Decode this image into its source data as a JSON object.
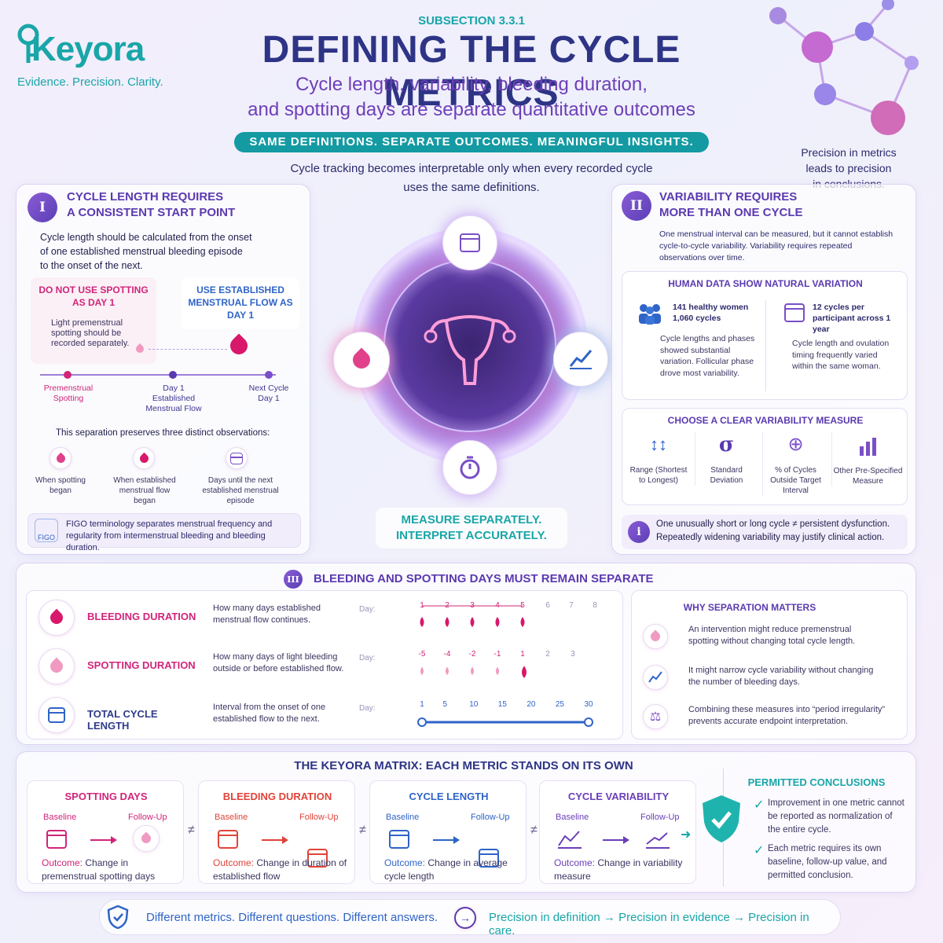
{
  "brand": {
    "name": "Keyora",
    "tagline": "Evidence. Precision. Clarity."
  },
  "header": {
    "subsection": "SUBSECTION 3.3.1",
    "title": "DEFINING THE CYCLE METRICS",
    "subtitle_line1": "Cycle length, variability, bleeding duration,",
    "subtitle_line2": "and spotting days are separate quantitative outcomes",
    "banner": "SAME DEFINITIONS. SEPARATE OUTCOMES. MEANINGFUL INSIGHTS.",
    "intro_line1": "Cycle tracking becomes interpretable only when every recorded cycle",
    "intro_line2": "uses the same definitions.",
    "side_note_line1": "Precision in metrics",
    "side_note_line2": "leads to precision",
    "side_note_line3": "in conclusions."
  },
  "section1": {
    "numeral": "I",
    "title_line1": "CYCLE LENGTH REQUIRES",
    "title_line2": "A CONSISTENT START POINT",
    "body": "Cycle length should be calculated from the onset of one established menstrual bleeding episode to the onset of the next.",
    "dont_title": "DO NOT USE SPOTTING AS DAY 1",
    "dont_body": "Light premenstrual spotting should be recorded separately.",
    "use_title": "USE ESTABLISHED MENSTRUAL FLOW AS DAY 1",
    "timeline": [
      "Premenstrual Spotting",
      "Day 1 Established Menstrual Flow",
      "Next Cycle Day 1"
    ],
    "separation": "This separation preserves three distinct observations:",
    "observations": [
      "When spotting began",
      "When established menstrual flow began",
      "Days until the next established menstrual episode"
    ],
    "figo_label": "FIGO",
    "figo_text": "FIGO terminology separates menstrual frequency and regularity from intermenstrual bleeding and bleeding duration."
  },
  "center": {
    "tagline_line1": "MEASURE SEPARATELY.",
    "tagline_line2": "INTERPRET ACCURATELY."
  },
  "section2": {
    "numeral": "II",
    "title_line1": "VARIABILITY REQUIRES",
    "title_line2": "MORE THAN ONE CYCLE",
    "body": "One menstrual interval can be measured, but it cannot establish cycle-to-cycle variability. Variability requires repeated observations over time.",
    "human_title": "HUMAN DATA SHOW NATURAL VARIATION",
    "study1_stat": "141 healthy women 1,060 cycles",
    "study1_body": "Cycle lengths and phases showed substantial variation. Follicular phase drove most variability.",
    "study2_stat": "12 cycles per participant across 1 year",
    "study2_body": "Cycle length and ovulation timing frequently varied within the same woman.",
    "measure_title": "CHOOSE A CLEAR VARIABILITY MEASURE",
    "measures": [
      "Range (Shortest to Longest)",
      "Standard Deviation",
      "% of Cycles Outside Target Interval",
      "Other Pre-Specified Measure"
    ],
    "note_line1": "One unusually short or long cycle ≠ persistent dysfunction.",
    "note_line2": "Repeatedly widening variability may justify clinical action."
  },
  "section3": {
    "numeral": "III",
    "title": "BLEEDING AND SPOTTING DAYS MUST REMAIN SEPARATE",
    "day_label": "Day:",
    "rows": [
      {
        "label": "BLEEDING DURATION",
        "desc": "How many days established menstrual flow continues.",
        "days": [
          "1",
          "2",
          "3",
          "4",
          "5",
          "6",
          "7",
          "8"
        ]
      },
      {
        "label": "SPOTTING DURATION",
        "desc": "How many days of light bleeding outside or before established flow.",
        "days": [
          "-5",
          "-4",
          "-2",
          "-1",
          "1",
          "2",
          "3"
        ]
      },
      {
        "label": "TOTAL CYCLE LENGTH",
        "desc": "Interval from the onset of one established flow to the next.",
        "days": [
          "1",
          "5",
          "10",
          "15",
          "20",
          "25",
          "30"
        ]
      }
    ],
    "why_title": "WHY SEPARATION MATTERS",
    "why": [
      "An intervention might reduce premenstrual spotting without changing total cycle length.",
      "It might narrow cycle variability without changing the number of bleeding days.",
      "Combining these measures into “period irregularity” prevents accurate endpoint interpretation."
    ]
  },
  "matrix": {
    "title": "THE KEYORA MATRIX: EACH METRIC STANDS ON ITS OWN",
    "baseline": "Baseline",
    "followup": "Follow-Up",
    "outcome_prefix": "Outcome:",
    "neq": "≠",
    "cards": [
      {
        "title": "SPOTTING DAYS",
        "outcome": "Change in premenstrual spotting days",
        "color": "#d0257a"
      },
      {
        "title": "BLEEDING DURATION",
        "outcome": "Change in duration of established flow",
        "color": "#e0443a"
      },
      {
        "title": "CYCLE LENGTH",
        "outcome": "Change in average cycle length",
        "color": "#2f64c8"
      },
      {
        "title": "CYCLE VARIABILITY",
        "outcome": "Change in variability measure",
        "color": "#6b3fb8"
      }
    ],
    "permitted_title": "PERMITTED CONCLUSIONS",
    "permitted": [
      "Improvement in one metric cannot be reported as normalization of the entire cycle.",
      "Each metric requires its own baseline, follow-up value, and permitted conclusion."
    ]
  },
  "footer": {
    "left": "Different metrics. Different questions. Different answers.",
    "right": "Precision in definition → Precision in evidence → Precision in care."
  }
}
